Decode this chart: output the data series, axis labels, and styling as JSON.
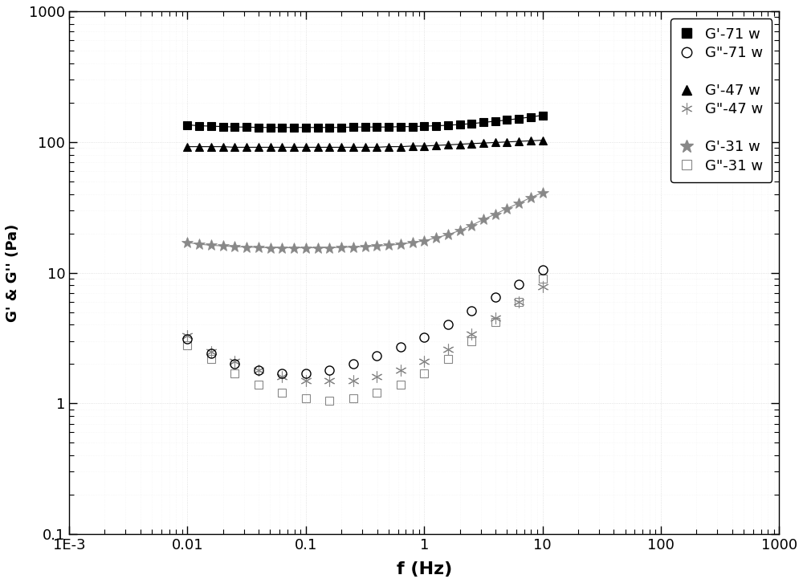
{
  "xlim": [
    0.001,
    1000
  ],
  "ylim": [
    0.1,
    1000
  ],
  "xlabel": "f (Hz)",
  "ylabel": "G' & G'' (Pa)",
  "background_color": "#ffffff",
  "series": {
    "G_prime_71w": {
      "color": "#000000",
      "marker": "s",
      "markersize": 7,
      "linestyle": "-",
      "linewidth": 0.8,
      "markerfacecolor": "#000000",
      "label": "G'-71 w",
      "x": [
        0.01,
        0.0126,
        0.0158,
        0.02,
        0.0251,
        0.0316,
        0.0398,
        0.0501,
        0.0631,
        0.0794,
        0.1,
        0.126,
        0.158,
        0.2,
        0.251,
        0.316,
        0.398,
        0.501,
        0.631,
        0.794,
        1.0,
        1.26,
        1.58,
        2.0,
        2.51,
        3.16,
        3.98,
        5.01,
        6.31,
        7.94,
        10.0
      ],
      "y": [
        135,
        133,
        132,
        131,
        130,
        130,
        129,
        129,
        129,
        129,
        129,
        129,
        129,
        129,
        130,
        130,
        130,
        130,
        131,
        131,
        132,
        133,
        134,
        136,
        138,
        141,
        144,
        147,
        151,
        155,
        160
      ]
    },
    "G_dprime_71w": {
      "color": "#000000",
      "marker": "o",
      "markersize": 8,
      "markerfacecolor": "none",
      "label": "G\"-71 w",
      "x": [
        0.01,
        0.0158,
        0.0251,
        0.0398,
        0.0631,
        0.1,
        0.158,
        0.251,
        0.398,
        0.631,
        1.0,
        1.58,
        2.51,
        3.98,
        6.31,
        10.0
      ],
      "y": [
        3.1,
        2.4,
        2.0,
        1.8,
        1.7,
        1.7,
        1.8,
        2.0,
        2.3,
        2.7,
        3.2,
        4.0,
        5.1,
        6.5,
        8.2,
        10.5
      ]
    },
    "G_prime_47w": {
      "color": "#000000",
      "marker": "^",
      "markersize": 7,
      "linestyle": "-",
      "linewidth": 0.8,
      "markerfacecolor": "#000000",
      "label": "G'-47 w",
      "x": [
        0.01,
        0.0126,
        0.0158,
        0.02,
        0.0251,
        0.0316,
        0.0398,
        0.0501,
        0.0631,
        0.0794,
        0.1,
        0.126,
        0.158,
        0.2,
        0.251,
        0.316,
        0.398,
        0.501,
        0.631,
        0.794,
        1.0,
        1.26,
        1.58,
        2.0,
        2.51,
        3.16,
        3.98,
        5.01,
        6.31,
        7.94,
        10.0
      ],
      "y": [
        92,
        92,
        92,
        92,
        91,
        91,
        91,
        91,
        91,
        91,
        91,
        91,
        91,
        91,
        91,
        91,
        91,
        92,
        92,
        93,
        93,
        94,
        95,
        96,
        97,
        98,
        99,
        100,
        101,
        102,
        103
      ]
    },
    "G_dprime_47w": {
      "color": "#888888",
      "markersize": 10,
      "label": "G\"-47 w",
      "x": [
        0.01,
        0.0158,
        0.0251,
        0.0398,
        0.0631,
        0.1,
        0.158,
        0.251,
        0.398,
        0.631,
        1.0,
        1.58,
        2.51,
        3.98,
        6.31,
        10.0
      ],
      "y": [
        3.3,
        2.5,
        2.1,
        1.8,
        1.6,
        1.5,
        1.5,
        1.5,
        1.6,
        1.8,
        2.1,
        2.6,
        3.4,
        4.5,
        6.0,
        7.8
      ]
    },
    "G_prime_31w": {
      "color": "#888888",
      "markersize": 8,
      "linestyle": "-",
      "linewidth": 0.8,
      "label": "G'-31 w",
      "x": [
        0.01,
        0.0126,
        0.0158,
        0.02,
        0.0251,
        0.0316,
        0.0398,
        0.0501,
        0.0631,
        0.0794,
        0.1,
        0.126,
        0.158,
        0.2,
        0.251,
        0.316,
        0.398,
        0.501,
        0.631,
        0.794,
        1.0,
        1.26,
        1.58,
        2.0,
        2.51,
        3.16,
        3.98,
        5.01,
        6.31,
        7.94,
        10.0
      ],
      "y": [
        17.0,
        16.5,
        16.2,
        16.0,
        15.8,
        15.7,
        15.6,
        15.5,
        15.5,
        15.5,
        15.5,
        15.5,
        15.5,
        15.6,
        15.7,
        15.8,
        16.0,
        16.2,
        16.5,
        17.0,
        17.5,
        18.5,
        19.5,
        21.0,
        23.0,
        25.5,
        28.0,
        31.0,
        34.0,
        37.5,
        41.0
      ]
    },
    "G_dprime_31w": {
      "color": "#888888",
      "marker": "s",
      "markersize": 7,
      "markerfacecolor": "none",
      "label": "G\"-31 w",
      "x": [
        0.01,
        0.0158,
        0.0251,
        0.0398,
        0.0631,
        0.1,
        0.158,
        0.251,
        0.398,
        0.631,
        1.0,
        1.58,
        2.51,
        3.98,
        6.31,
        10.0
      ],
      "y": [
        2.8,
        2.2,
        1.7,
        1.4,
        1.2,
        1.1,
        1.05,
        1.1,
        1.2,
        1.4,
        1.7,
        2.2,
        3.0,
        4.2,
        6.0,
        9.0
      ]
    }
  }
}
